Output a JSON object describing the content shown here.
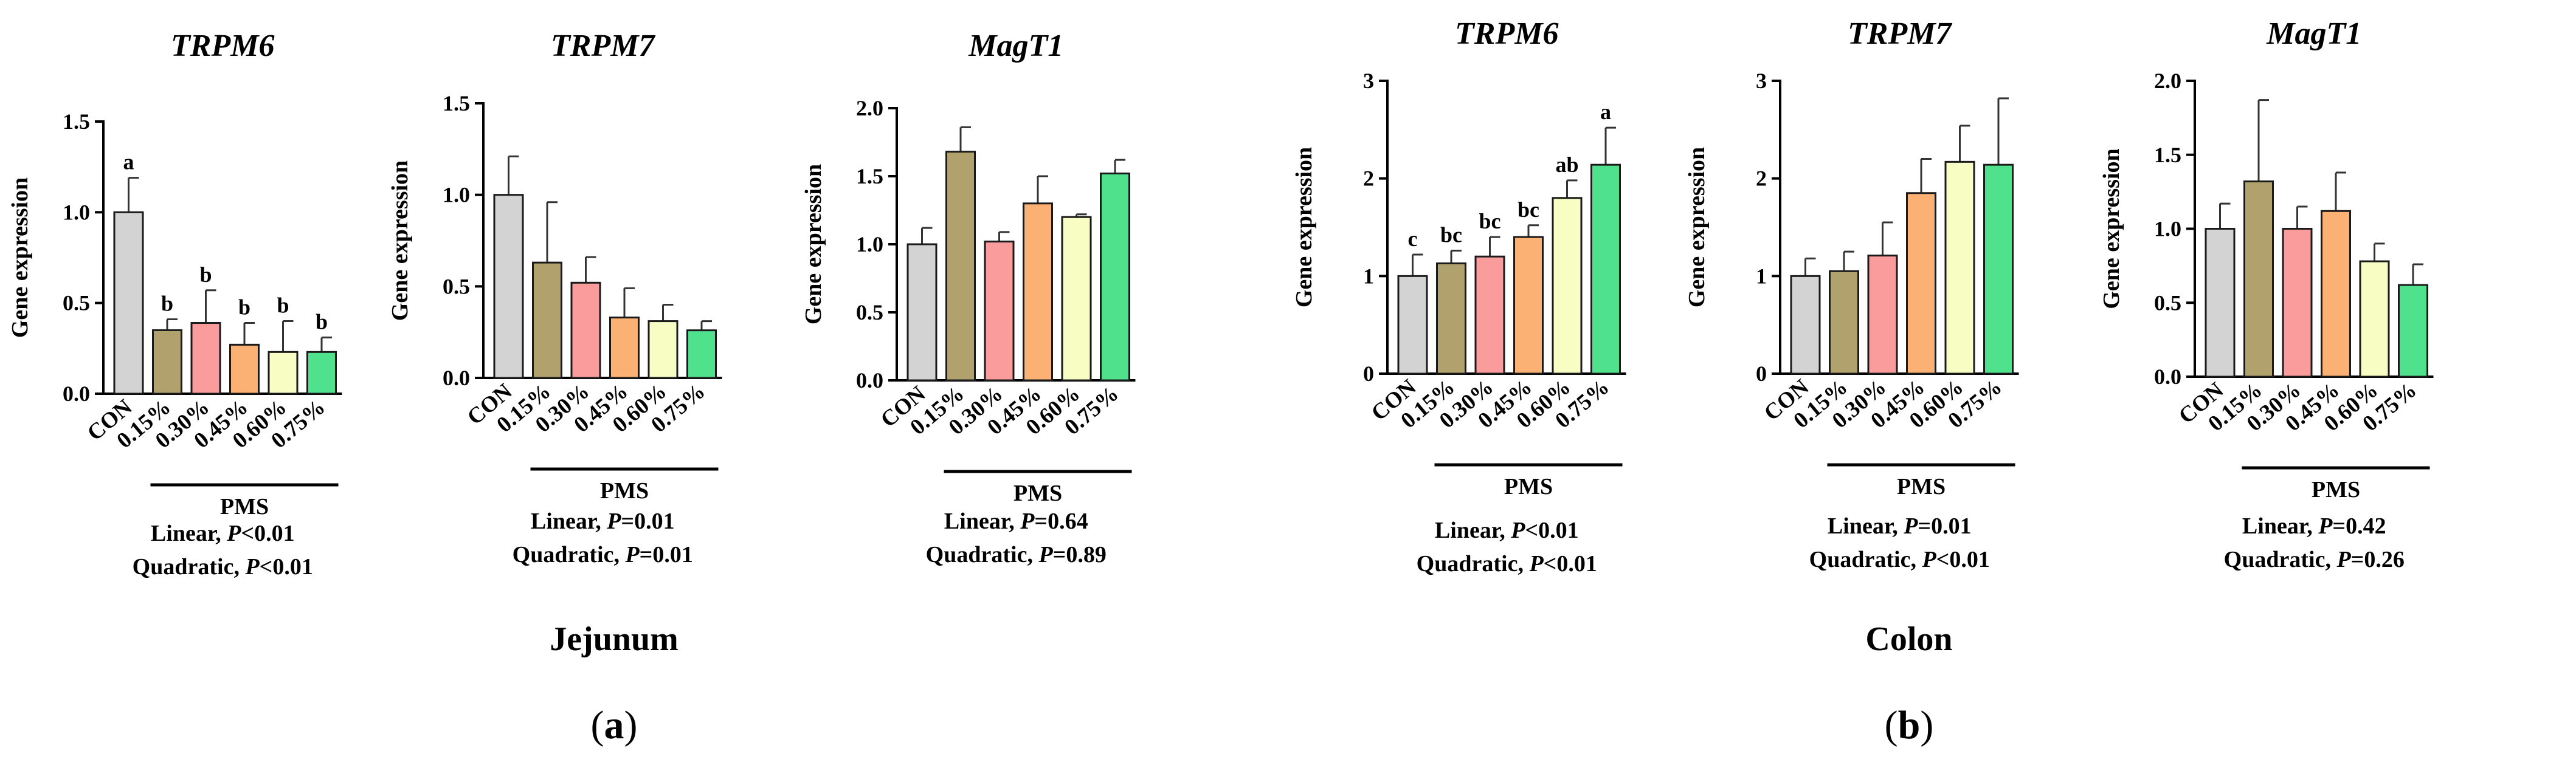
{
  "colors": [
    "#d3d3d3",
    "#b1a16c",
    "#fa9b9c",
    "#fbb174",
    "#f8fdc4",
    "#50e18d"
  ],
  "ylabel": "Gene expression",
  "group_label": "PMS",
  "categories": [
    "CON",
    "0.15%",
    "0.30%",
    "0.45%",
    "0.60%",
    "0.75%"
  ],
  "section_labels": {
    "left": "Jejunum",
    "right": "Colon"
  },
  "panel_labels": {
    "a": {
      "open": "(",
      "letter": "a",
      "close": ")"
    },
    "b": {
      "open": "(",
      "letter": "b",
      "close": ")"
    }
  },
  "chart_data": [
    {
      "type": "bar",
      "panel": "a",
      "tissue": "Jejunum",
      "title": "TRPM6",
      "categories": [
        "CON",
        "0.15%",
        "0.30%",
        "0.45%",
        "0.60%",
        "0.75%"
      ],
      "values": [
        1.0,
        0.35,
        0.39,
        0.27,
        0.23,
        0.23
      ],
      "errors": [
        0.19,
        0.06,
        0.18,
        0.12,
        0.17,
        0.08
      ],
      "significance": [
        "a",
        "b",
        "b",
        "b",
        "b",
        "b"
      ],
      "ylim": [
        0,
        1.5
      ],
      "yticks": [
        "0.0",
        "0.5",
        "1.0",
        "1.5"
      ],
      "xlabel": "",
      "ylabel": "Gene expression",
      "group_label": "PMS",
      "stats": {
        "linear": {
          "prefix": "Linear, ",
          "p": "P",
          "rest": "<0.01"
        },
        "quadratic": {
          "prefix": "Quadratic, ",
          "p": "P",
          "rest": "<0.01"
        }
      }
    },
    {
      "type": "bar",
      "panel": "a",
      "tissue": "Jejunum",
      "title": "TRPM7",
      "categories": [
        "CON",
        "0.15%",
        "0.30%",
        "0.45%",
        "0.60%",
        "0.75%"
      ],
      "values": [
        1.0,
        0.63,
        0.52,
        0.33,
        0.31,
        0.26
      ],
      "errors": [
        0.21,
        0.33,
        0.14,
        0.16,
        0.09,
        0.05
      ],
      "significance": [],
      "ylim": [
        0,
        1.5
      ],
      "yticks": [
        "0.0",
        "0.5",
        "1.0",
        "1.5"
      ],
      "xlabel": "",
      "ylabel": "Gene expression",
      "group_label": "PMS",
      "stats": {
        "linear": {
          "prefix": "Linear, ",
          "p": "P",
          "rest": "=0.01"
        },
        "quadratic": {
          "prefix": "Quadratic, ",
          "p": "P",
          "rest": "=0.01"
        }
      }
    },
    {
      "type": "bar",
      "panel": "a",
      "tissue": "Jejunum",
      "title": "MagT1",
      "categories": [
        "CON",
        "0.15%",
        "0.30%",
        "0.45%",
        "0.60%",
        "0.75%"
      ],
      "values": [
        1.0,
        1.68,
        1.02,
        1.3,
        1.2,
        1.52
      ],
      "errors": [
        0.12,
        0.18,
        0.07,
        0.2,
        0.02,
        0.1
      ],
      "significance": [],
      "ylim": [
        0,
        2.0
      ],
      "yticks": [
        "0.0",
        "0.5",
        "1.0",
        "1.5",
        "2.0"
      ],
      "xlabel": "",
      "ylabel": "Gene expression",
      "group_label": "PMS",
      "stats": {
        "linear": {
          "prefix": "Linear, ",
          "p": "P",
          "rest": "=0.64"
        },
        "quadratic": {
          "prefix": "Quadratic, ",
          "p": "P",
          "rest": "=0.89"
        }
      }
    },
    {
      "type": "bar",
      "panel": "b",
      "tissue": "Colon",
      "title": "TRPM6",
      "categories": [
        "CON",
        "0.15%",
        "0.30%",
        "0.45%",
        "0.60%",
        "0.75%"
      ],
      "values": [
        1.0,
        1.13,
        1.2,
        1.4,
        1.8,
        2.14
      ],
      "errors": [
        0.22,
        0.13,
        0.2,
        0.12,
        0.18,
        0.38
      ],
      "significance": [
        "c",
        "bc",
        "bc",
        "bc",
        "ab",
        "a"
      ],
      "ylim": [
        0,
        3
      ],
      "yticks": [
        "0",
        "1",
        "2",
        "3"
      ],
      "xlabel": "",
      "ylabel": "Gene expression",
      "group_label": "PMS",
      "stats": {
        "linear": {
          "prefix": "Linear, ",
          "p": "P",
          "rest": "<0.01"
        },
        "quadratic": {
          "prefix": "Quadratic, ",
          "p": "P",
          "rest": "<0.01"
        }
      }
    },
    {
      "type": "bar",
      "panel": "b",
      "tissue": "Colon",
      "title": "TRPM7",
      "categories": [
        "CON",
        "0.15%",
        "0.30%",
        "0.45%",
        "0.60%",
        "0.75%"
      ],
      "values": [
        1.0,
        1.05,
        1.21,
        1.85,
        2.17,
        2.14
      ],
      "errors": [
        0.18,
        0.2,
        0.34,
        0.35,
        0.37,
        0.68
      ],
      "significance": [],
      "ylim": [
        0,
        3
      ],
      "yticks": [
        "0",
        "1",
        "2",
        "3"
      ],
      "xlabel": "",
      "ylabel": "Gene expression",
      "group_label": "PMS",
      "stats": {
        "linear": {
          "prefix": "Linear, ",
          "p": "P",
          "rest": "=0.01"
        },
        "quadratic": {
          "prefix": "Quadratic, ",
          "p": "P",
          "rest": "<0.01"
        }
      }
    },
    {
      "type": "bar",
      "panel": "b",
      "tissue": "Colon",
      "title": "MagT1",
      "categories": [
        "CON",
        "0.15%",
        "0.30%",
        "0.45%",
        "0.60%",
        "0.75%"
      ],
      "values": [
        1.0,
        1.32,
        1.0,
        1.12,
        0.78,
        0.62
      ],
      "errors": [
        0.17,
        0.55,
        0.15,
        0.26,
        0.12,
        0.14
      ],
      "significance": [],
      "ylim": [
        0,
        2.0
      ],
      "yticks": [
        "0.0",
        "0.5",
        "1.0",
        "1.5",
        "2.0"
      ],
      "xlabel": "",
      "ylabel": "Gene expression",
      "group_label": "PMS",
      "stats": {
        "linear": {
          "prefix": "Linear, ",
          "p": "P",
          "rest": "=0.42"
        },
        "quadratic": {
          "prefix": "Quadratic, ",
          "p": "P",
          "rest": "=0.26"
        }
      }
    }
  ]
}
